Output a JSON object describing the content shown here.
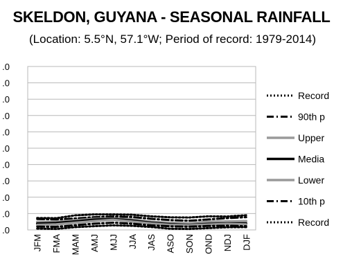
{
  "chart_data": {
    "type": "line",
    "title": "SKELDON, GUYANA - SEASONAL RAINFALL",
    "subtitle": "(Location: 5.5°N, 57.1°W; Period of record: 1979-2014)",
    "categories": [
      "JFM",
      "FMA",
      "MAM",
      "AMJ",
      "MJJ",
      "JJA",
      "JAS",
      "ASO",
      "SON",
      "OND",
      "NDJ",
      "DJF"
    ],
    "y_tick_labels": [
      ".0",
      ".0",
      ".0",
      ".0",
      ".0",
      ".0",
      ".0",
      ".0",
      ".0",
      ".0",
      ".0"
    ],
    "ylim": [
      0,
      1000
    ],
    "grid": true,
    "legend_position": "right",
    "series": [
      {
        "name": "Record",
        "style": "dotted",
        "color": "#000000",
        "values": [
          73,
          72,
          89,
          95,
          95,
          93,
          83,
          77,
          76,
          83,
          82,
          90
        ]
      },
      {
        "name": "90th p",
        "style": "dashdot",
        "color": "#000000",
        "values": [
          67,
          64,
          70,
          78,
          82,
          79,
          68,
          60,
          56,
          64,
          72,
          78
        ]
      },
      {
        "name": "Upper",
        "style": "solid",
        "color": "#9a9a9a",
        "values": [
          49,
          49,
          59,
          68,
          70,
          64,
          50,
          44,
          39,
          51,
          52,
          54
        ]
      },
      {
        "name": "Media",
        "style": "solid",
        "color": "#000000",
        "values": [
          39,
          43,
          52,
          63,
          67,
          57,
          44,
          35,
          31,
          37,
          40,
          40
        ]
      },
      {
        "name": "Lower",
        "style": "solid",
        "color": "#9a9a9a",
        "values": [
          31,
          34,
          44,
          54,
          62,
          51,
          39,
          31,
          29,
          33,
          37,
          34
        ]
      },
      {
        "name": "10th p",
        "style": "dashdot",
        "color": "#000000",
        "values": [
          20,
          19,
          29,
          38,
          44,
          38,
          28,
          22,
          20,
          24,
          26,
          23
        ]
      },
      {
        "name": "Record",
        "style": "dotted",
        "color": "#000000",
        "values": [
          8,
          6,
          17,
          23,
          28,
          25,
          18,
          7,
          6,
          11,
          16,
          17
        ]
      }
    ]
  }
}
